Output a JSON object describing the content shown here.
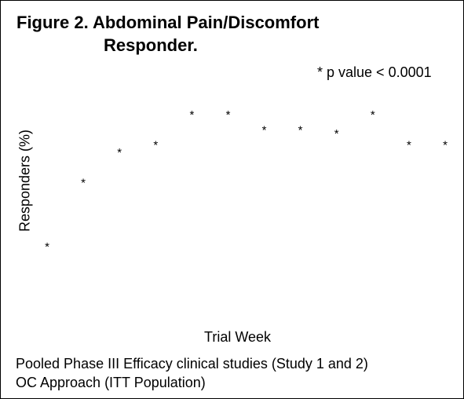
{
  "chart_data": {
    "type": "scatter",
    "title_line1": "Figure 2. Abdominal Pain/Discomfort",
    "title_line2": "Responder.",
    "annotation": "* p value < 0.0001",
    "xlabel": "Trial Week",
    "ylabel": "Responders (%)",
    "marker": "*",
    "grid": false,
    "legend": "none",
    "x": [
      1,
      2,
      3,
      4,
      5,
      6,
      7,
      8,
      9,
      10,
      11,
      12
    ],
    "series": [
      {
        "values": [
          12,
          46,
          62,
          66,
          82,
          82,
          74,
          74,
          72,
          82,
          66,
          66
        ]
      }
    ],
    "ylim": [
      0,
      100
    ],
    "xlim": [
      0.5,
      12.5
    ]
  },
  "footnote": {
    "line1": "Pooled Phase III Efficacy clinical studies (Study 1 and 2)",
    "line2": "OC Approach (ITT Population)"
  }
}
